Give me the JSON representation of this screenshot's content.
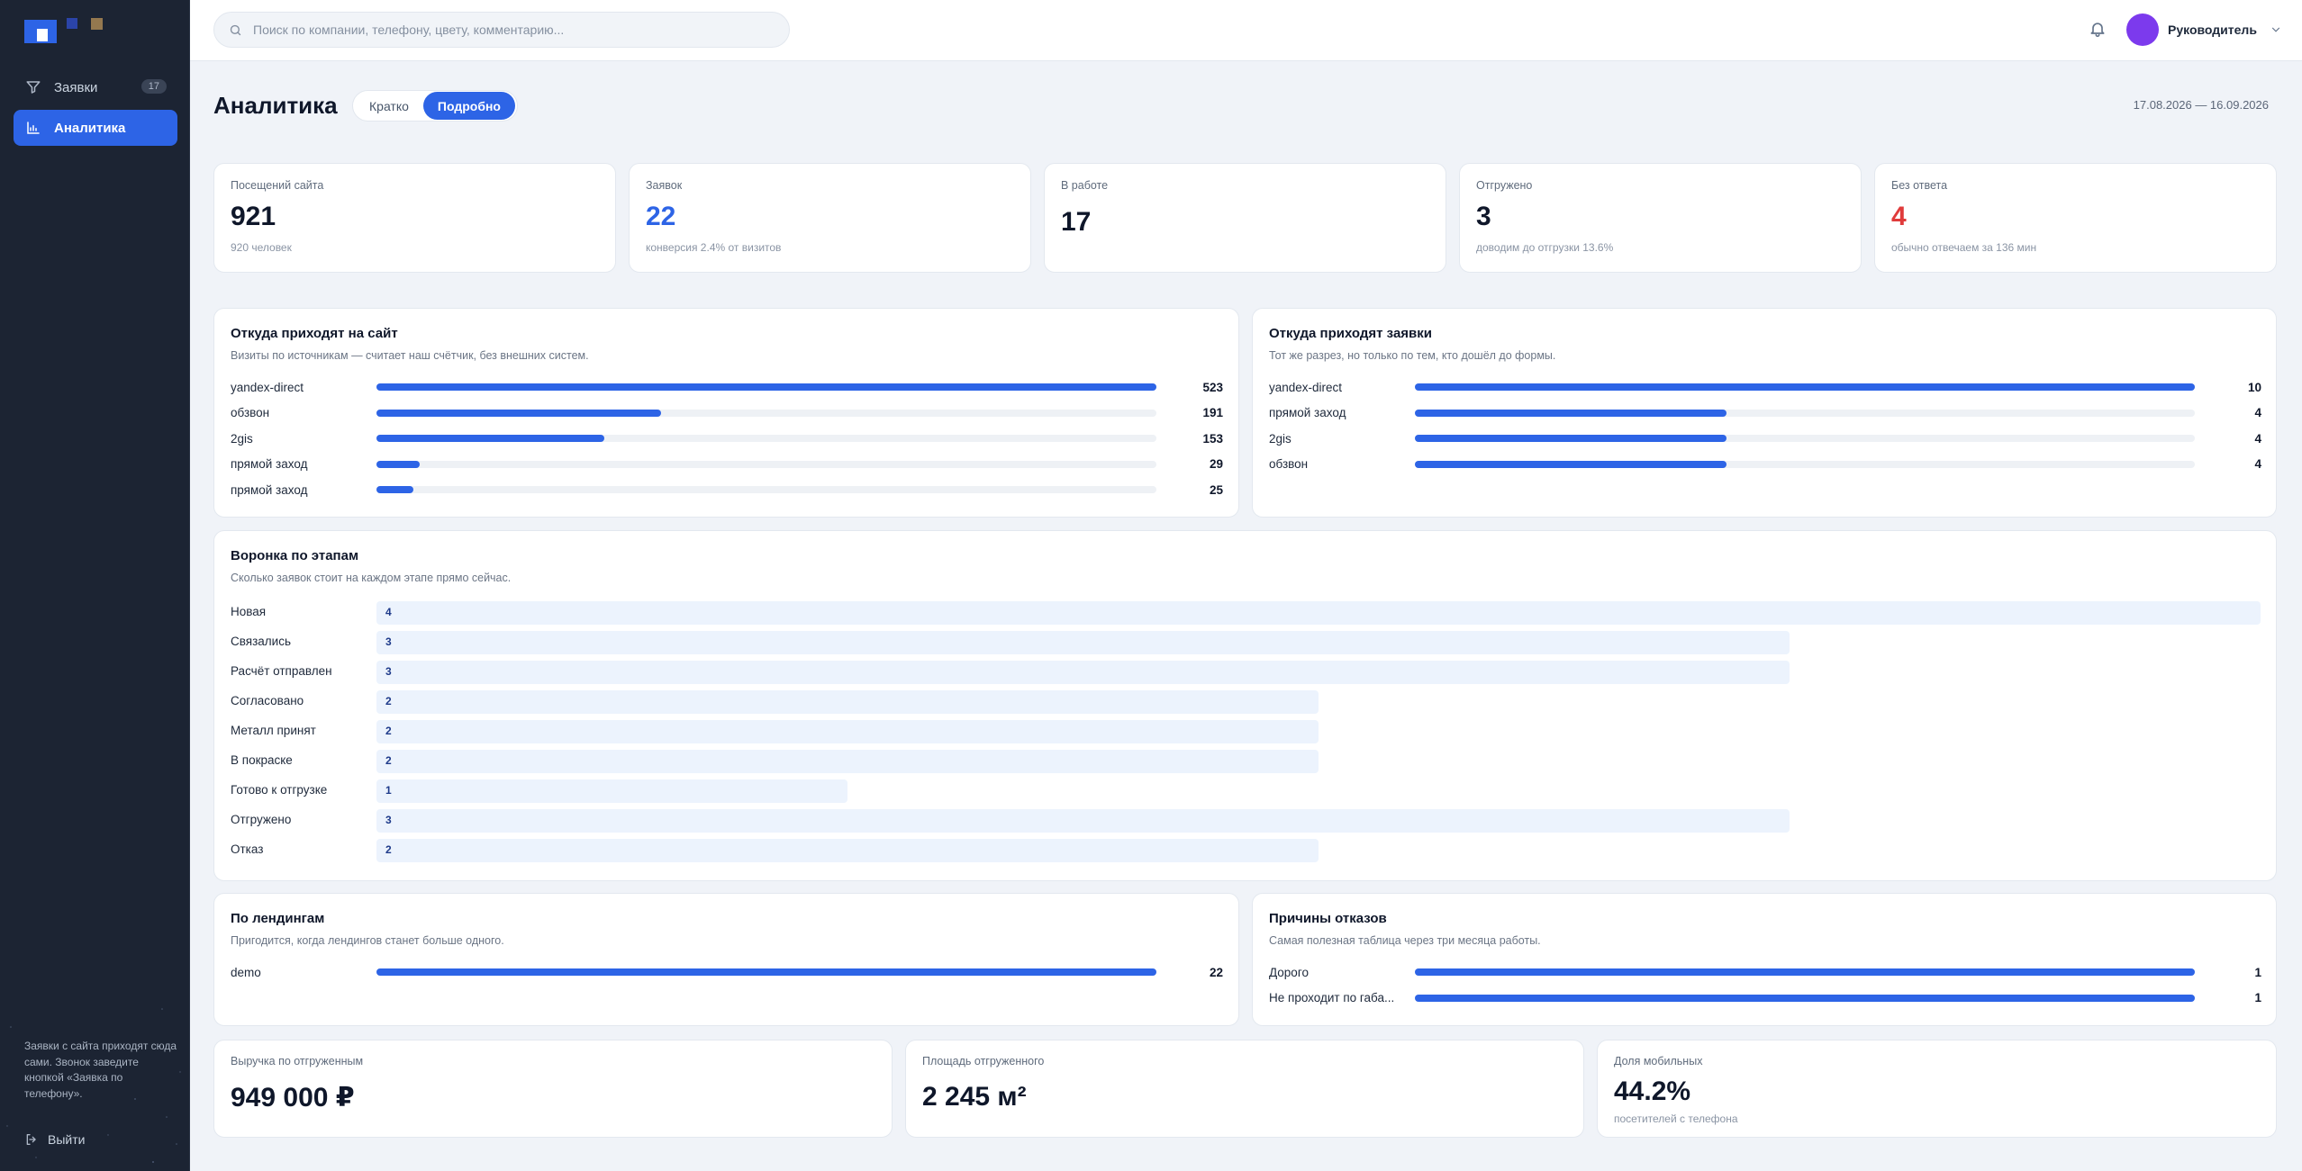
{
  "sidebar": {
    "nav": [
      {
        "label": "Заявки",
        "count": "17",
        "icon": "funnel-icon"
      },
      {
        "label": "Аналитика",
        "icon": "chart-icon"
      }
    ],
    "note": "Заявки с сайта приходят сюда сами. Звонок заведите кнопкой «Заявка по телефону».",
    "logout": "Выйти"
  },
  "topbar": {
    "search_placeholder": "Поиск по компании, телефону, цвету, комментарию...",
    "user": "Руководитель"
  },
  "header": {
    "title": "Аналитика",
    "toggle": [
      "Кратко",
      "Подробно"
    ],
    "toggle_selected": "Подробно",
    "date_range": "17.08.2026 — 16.09.2026"
  },
  "colors": {
    "accent": "#2d64e6",
    "avatar": "#7c3aed",
    "blue_value": "#2d64e6",
    "red_value": "#e03b3b",
    "sidebar": "#1c2433"
  },
  "kpis": [
    {
      "label": "Посещений сайта",
      "value": "921",
      "sub": "920 человек"
    },
    {
      "label": "Заявок",
      "value": "22",
      "sub": "конверсия 2.4% от визитов"
    },
    {
      "label": "В работе",
      "value": "17",
      "sub": ""
    },
    {
      "label": "Отгружено",
      "value": "3",
      "sub": "доводим до отгрузки 13.6%"
    },
    {
      "label": "Без ответа",
      "value": "4",
      "sub": "обычно отвечаем за 136 мин"
    }
  ],
  "site_sources": {
    "title": "Откуда приходят на сайт",
    "subtitle": "Визиты по источникам — считает наш счётчик, без внешних систем.",
    "rows": [
      {
        "label": "yandex-direct",
        "value": 523
      },
      {
        "label": "обзвон",
        "value": 191
      },
      {
        "label": "2gis",
        "value": 153
      },
      {
        "label": "прямой заход",
        "value": 29
      },
      {
        "label": "прямой заход",
        "value": 25
      }
    ]
  },
  "lead_sources": {
    "title": "Откуда приходят заявки",
    "subtitle": "Тот же разрез, но только по тем, кто дошёл до формы.",
    "rows": [
      {
        "label": "yandex-direct",
        "value": 10
      },
      {
        "label": "прямой заход",
        "value": 4
      },
      {
        "label": "2gis",
        "value": 4
      },
      {
        "label": "обзвон",
        "value": 4
      }
    ]
  },
  "funnel": {
    "title": "Воронка по этапам",
    "subtitle": "Сколько заявок стоит на каждом этапе прямо сейчас.",
    "rows": [
      {
        "label": "Новая",
        "value": 4
      },
      {
        "label": "Связались",
        "value": 3
      },
      {
        "label": "Расчёт отправлен",
        "value": 3
      },
      {
        "label": "Согласовано",
        "value": 2
      },
      {
        "label": "Металл принят",
        "value": 2
      },
      {
        "label": "В покраске",
        "value": 2
      },
      {
        "label": "Готово к отгрузке",
        "value": 1
      },
      {
        "label": "Отгружено",
        "value": 3
      },
      {
        "label": "Отказ",
        "value": 2
      }
    ]
  },
  "landings": {
    "title": "По лендингам",
    "subtitle": "Пригодится, когда лендингов станет больше одного.",
    "rows": [
      {
        "label": "demo",
        "value": 22
      }
    ]
  },
  "rejections": {
    "title": "Причины отказов",
    "subtitle": "Самая полезная таблица через три месяца работы.",
    "rows": [
      {
        "label": "Дорого",
        "value": 1
      },
      {
        "label": "Не проходит по габа...",
        "value": 1
      }
    ]
  },
  "bottom": [
    {
      "label": "Выручка по отгруженным",
      "value": "949 000 ₽",
      "sub": ""
    },
    {
      "label": "Площадь отгруженного",
      "value": "2 245 м²",
      "sub": ""
    },
    {
      "label": "Доля мобильных",
      "value": "44.2%",
      "sub": "посетителей с телефона"
    }
  ]
}
